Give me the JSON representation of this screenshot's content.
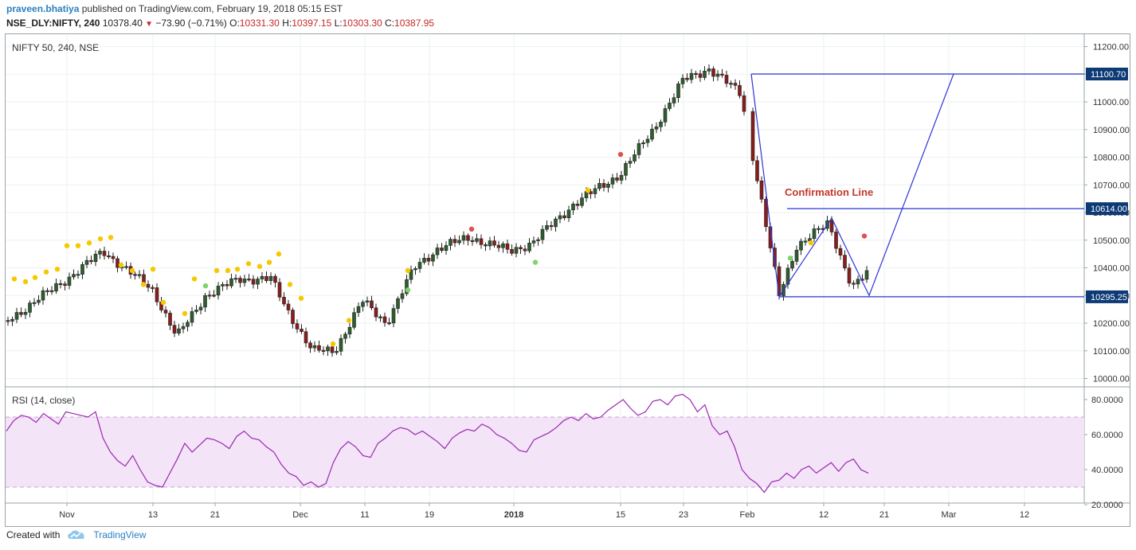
{
  "header": {
    "author": "praveen.bhatiya",
    "published_text": "published on TradingView.com, February 19, 2018 05:15 EST",
    "symbol": "NSE_DLY:NIFTY, 240",
    "last_price": "10378.40",
    "change_arrow": "▼",
    "change": "−73.90 (−0.71%)",
    "o_label": "O:",
    "o_value": "10331.30",
    "h_label": "H:",
    "h_value": "10397.15",
    "l_label": "L:",
    "l_value": "10303.30",
    "c_label": "C:",
    "c_value": "10387.95"
  },
  "footer": {
    "created_with": "Created with",
    "brand": "TradingView"
  },
  "colors": {
    "up": "#2e5e2e",
    "down": "#8b1c1c",
    "annotation": "#2b35d6",
    "rsi": "#9b27b0",
    "rsi_band": "#f3e4f8",
    "label_text": "#c0392b",
    "price_tag": "#0d3a75",
    "dot_yellow": "#f5c800",
    "dot_green": "#7ed36a",
    "dot_red": "#e05050"
  },
  "chart_data": [
    {
      "type": "candlestick",
      "title": "NIFTY 50, 240, NSE",
      "ylim": [
        10000,
        11200
      ],
      "y_ticks": [
        "11200.00",
        "11100.00",
        "11000.00",
        "10900.00",
        "10800.00",
        "10700.00",
        "10600.00",
        "10500.00",
        "10400.00",
        "10300.00",
        "10200.00",
        "10100.00",
        "10000.00"
      ],
      "x_ticks": [
        "Nov",
        "13",
        "21",
        "Dec",
        "11",
        "19",
        "2018",
        "15",
        "23",
        "Feb",
        "12",
        "21",
        "Mar",
        "12"
      ],
      "series": [
        {
          "points": [
            {
              "date": "Oct 24",
              "value": 10210
            },
            {
              "date": "Oct 31",
              "value": 10360
            },
            {
              "date": "Nov 6",
              "value": 10460
            },
            {
              "date": "Nov 8",
              "value": 10390
            },
            {
              "date": "Nov 13",
              "value": 10320
            },
            {
              "date": "Nov 16",
              "value": 10150
            },
            {
              "date": "Nov 20",
              "value": 10300
            },
            {
              "date": "Nov 24",
              "value": 10360
            },
            {
              "date": "Nov 28",
              "value": 10360
            },
            {
              "date": "Nov 30",
              "value": 10250
            },
            {
              "date": "Dec 5",
              "value": 10100
            },
            {
              "date": "Dec 8",
              "value": 10100
            },
            {
              "date": "Dec 12",
              "value": 10280
            },
            {
              "date": "Dec 15",
              "value": 10200
            },
            {
              "date": "Dec 18",
              "value": 10400
            },
            {
              "date": "Dec 22",
              "value": 10470
            },
            {
              "date": "Dec 27",
              "value": 10510
            },
            {
              "date": "Jan 1",
              "value": 10460
            },
            {
              "date": "Jan 4",
              "value": 10490
            },
            {
              "date": "Jan 10",
              "value": 10630
            },
            {
              "date": "Jan 15",
              "value": 10740
            },
            {
              "date": "Jan 19",
              "value": 10900
            },
            {
              "date": "Jan 23",
              "value": 11080
            },
            {
              "date": "Jan 26",
              "value": 11120
            },
            {
              "date": "Jan 30",
              "value": 11030
            },
            {
              "date": "Feb 2",
              "value": 10760
            },
            {
              "date": "Feb 6",
              "value": 10300
            },
            {
              "date": "Feb 9",
              "value": 10480
            },
            {
              "date": "Feb 13",
              "value": 10560
            },
            {
              "date": "Feb 16",
              "value": 10330
            },
            {
              "date": "Feb 19",
              "value": 10388
            }
          ]
        }
      ],
      "annotations": {
        "label": "Confirmation Line",
        "levels": [
          "11100.70",
          "10614.00",
          "10295.25"
        ]
      }
    },
    {
      "type": "line",
      "title": "RSI (14, close)",
      "ylim": [
        20,
        85
      ],
      "y_ticks": [
        "80.0000",
        "60.0000",
        "40.0000",
        "20.0000"
      ],
      "bands": [
        70,
        30
      ],
      "series": [
        {
          "values": [
            62,
            68,
            71,
            70,
            67,
            72,
            69,
            66,
            73,
            72,
            71,
            70,
            73,
            58,
            50,
            45,
            42,
            48,
            40,
            33,
            31,
            30,
            38,
            46,
            55,
            50,
            54,
            58,
            57,
            55,
            52,
            59,
            62,
            58,
            57,
            53,
            50,
            43,
            38,
            36,
            31,
            33,
            30,
            32,
            44,
            52,
            56,
            53,
            48,
            47,
            55,
            58,
            62,
            64,
            63,
            60,
            62,
            59,
            56,
            52,
            58,
            61,
            63,
            62,
            66,
            64,
            60,
            58,
            55,
            51,
            50,
            57,
            59,
            61,
            64,
            68,
            70,
            68,
            72,
            69,
            70,
            74,
            77,
            80,
            75,
            71,
            73,
            79,
            80,
            77,
            82,
            83,
            80,
            73,
            77,
            65,
            60,
            62,
            53,
            40,
            35,
            32,
            27,
            33,
            34,
            38,
            35,
            40,
            42,
            38,
            41,
            44,
            39,
            44,
            46,
            40,
            38
          ]
        }
      ]
    }
  ]
}
